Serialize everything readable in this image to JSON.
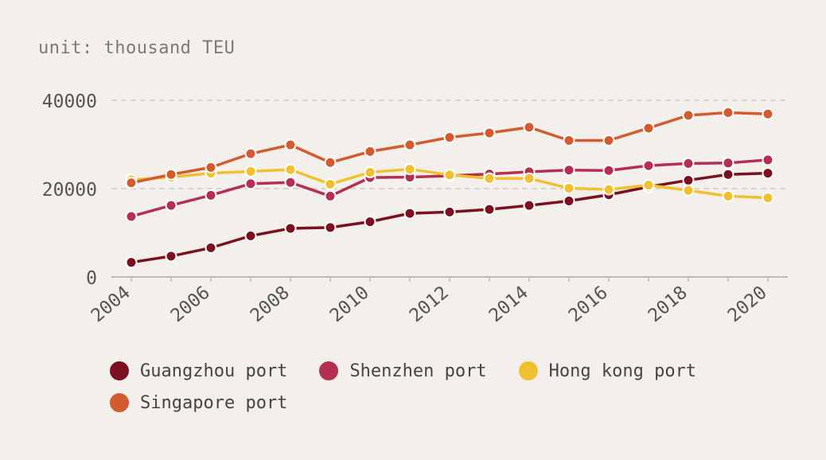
{
  "chart_data": {
    "type": "line",
    "unit_label": "unit: thousand TEU",
    "x": [
      2004,
      2005,
      2006,
      2007,
      2008,
      2009,
      2010,
      2011,
      2012,
      2013,
      2014,
      2015,
      2016,
      2017,
      2018,
      2019,
      2020
    ],
    "x_tick_labels": [
      "2004",
      "2006",
      "2008",
      "2010",
      "2012",
      "2014",
      "2016",
      "2018",
      "2020"
    ],
    "y_tick_labels": [
      "0",
      "20000",
      "40000"
    ],
    "ylim": [
      0,
      40000
    ],
    "grid": "horizontal dashed",
    "legend_position": "bottom",
    "series": [
      {
        "name": "Guangzhou port",
        "color": "#7a1020",
        "values": [
          3300,
          4700,
          6600,
          9300,
          11000,
          11200,
          12500,
          14400,
          14700,
          15300,
          16200,
          17200,
          18600,
          20400,
          21900,
          23200,
          23500
        ]
      },
      {
        "name": "Shenzhen port",
        "color": "#b53050",
        "values": [
          13700,
          16200,
          18500,
          21100,
          21400,
          18300,
          22500,
          22600,
          22900,
          23300,
          23800,
          24200,
          24100,
          25200,
          25700,
          25800,
          26500
        ]
      },
      {
        "name": "Hong kong port",
        "color": "#f0c030",
        "values": [
          22000,
          22600,
          23500,
          23900,
          24300,
          21000,
          23700,
          24400,
          23100,
          22300,
          22300,
          20100,
          19800,
          20800,
          19600,
          18300,
          17900
        ]
      },
      {
        "name": "Singapore port",
        "color": "#d45a30",
        "values": [
          21300,
          23200,
          24800,
          27900,
          29900,
          25900,
          28400,
          29900,
          31600,
          32600,
          33900,
          30900,
          30900,
          33700,
          36600,
          37200,
          36900
        ]
      }
    ]
  }
}
